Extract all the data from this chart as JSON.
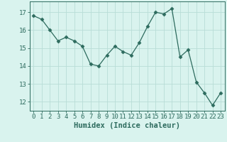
{
  "x": [
    0,
    1,
    2,
    3,
    4,
    5,
    6,
    7,
    8,
    9,
    10,
    11,
    12,
    13,
    14,
    15,
    16,
    17,
    18,
    19,
    20,
    21,
    22,
    23
  ],
  "y": [
    16.8,
    16.6,
    16.0,
    15.4,
    15.6,
    15.4,
    15.1,
    14.1,
    14.0,
    14.6,
    15.1,
    14.8,
    14.6,
    15.3,
    16.2,
    17.0,
    16.9,
    17.2,
    14.5,
    14.9,
    13.1,
    12.5,
    11.8,
    12.5
  ],
  "line_color": "#2d6b5e",
  "marker": "D",
  "marker_size": 2.5,
  "bg_color": "#d9f3ee",
  "grid_color": "#b8ddd7",
  "xlabel": "Humidex (Indice chaleur)",
  "xlabel_fontsize": 7.5,
  "tick_fontsize": 6.5,
  "ylim": [
    11.5,
    17.6
  ],
  "yticks": [
    12,
    13,
    14,
    15,
    16,
    17
  ],
  "xticks": [
    0,
    1,
    2,
    3,
    4,
    5,
    6,
    7,
    8,
    9,
    10,
    11,
    12,
    13,
    14,
    15,
    16,
    17,
    18,
    19,
    20,
    21,
    22,
    23
  ]
}
